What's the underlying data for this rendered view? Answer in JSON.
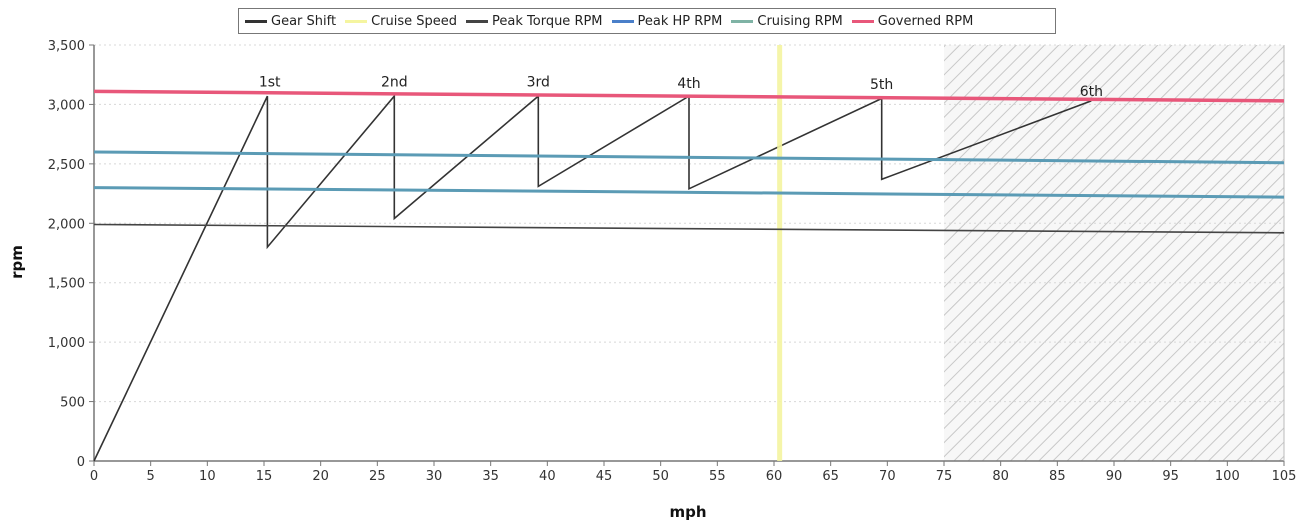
{
  "chart_data": {
    "type": "line",
    "xlabel": "mph",
    "ylabel": "rpm",
    "xlim": [
      0,
      105
    ],
    "ylim": [
      0,
      3500
    ],
    "x_ticks": [
      0,
      5,
      10,
      15,
      20,
      25,
      30,
      35,
      40,
      45,
      50,
      55,
      60,
      65,
      70,
      75,
      80,
      85,
      90,
      95,
      100,
      105
    ],
    "y_ticks": [
      0,
      500,
      1000,
      1500,
      2000,
      2500,
      3000,
      3500
    ],
    "y_tick_labels": [
      "0",
      "500",
      "1,000",
      "1,500",
      "2,000",
      "2,500",
      "3,000",
      "3,500"
    ],
    "legend_position": "top-center",
    "shaded_region": {
      "x_start": 75,
      "x_end": 105,
      "pattern": "diagonal-hatch"
    },
    "series": [
      {
        "name": "Gear Shift",
        "color": "#333333",
        "points": [
          [
            0,
            0
          ],
          [
            15.3,
            3070
          ],
          [
            15.3,
            1800
          ],
          [
            26.5,
            3070
          ],
          [
            26.5,
            2040
          ],
          [
            39.2,
            3070
          ],
          [
            39.2,
            2310
          ],
          [
            52.5,
            3070
          ],
          [
            52.5,
            2290
          ],
          [
            69.5,
            3050
          ],
          [
            69.5,
            2370
          ],
          [
            88,
            3030
          ]
        ]
      },
      {
        "name": "Cruise Speed",
        "color": "#f5f5a0",
        "x": 60.5
      },
      {
        "name": "Peak Torque RPM",
        "color": "#444444",
        "points": [
          [
            0,
            1990
          ],
          [
            105,
            1920
          ]
        ]
      },
      {
        "name": "Peak HP RPM",
        "color": "#5b9bb5",
        "points": [
          [
            0,
            2600
          ],
          [
            105,
            2510
          ]
        ]
      },
      {
        "name": "Cruising RPM",
        "color": "#5b9bb5",
        "points": [
          [
            0,
            2300
          ],
          [
            105,
            2220
          ]
        ]
      },
      {
        "name": "Governed RPM",
        "color": "#e8577a",
        "points": [
          [
            0,
            3110
          ],
          [
            105,
            3030
          ]
        ]
      }
    ],
    "gear_labels": [
      {
        "text": "1st",
        "x": 15.5,
        "y": 3150
      },
      {
        "text": "2nd",
        "x": 26.5,
        "y": 3150
      },
      {
        "text": "3rd",
        "x": 39.2,
        "y": 3150
      },
      {
        "text": "4th",
        "x": 52.5,
        "y": 3140
      },
      {
        "text": "5th",
        "x": 69.5,
        "y": 3130
      },
      {
        "text": "6th",
        "x": 88,
        "y": 3070
      }
    ]
  },
  "legend": [
    {
      "label": "Gear Shift",
      "color": "#333333"
    },
    {
      "label": "Cruise Speed",
      "color": "#f5f5a0"
    },
    {
      "label": "Peak Torque RPM",
      "color": "#444444"
    },
    {
      "label": "Peak HP RPM",
      "color": "#4a7fc9"
    },
    {
      "label": "Cruising RPM",
      "color": "#7fb3a5"
    },
    {
      "label": "Governed RPM",
      "color": "#e8577a"
    }
  ]
}
